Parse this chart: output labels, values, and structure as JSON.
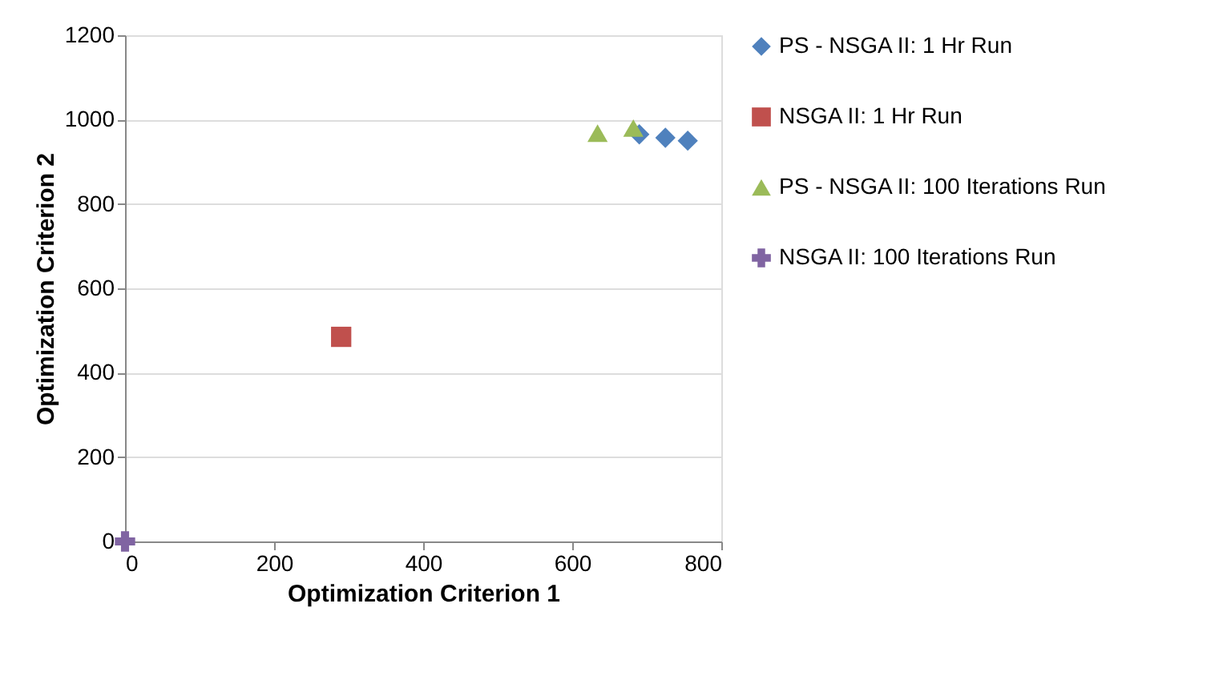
{
  "chart_data": {
    "type": "scatter",
    "xlabel": "Optimization Criterion 1",
    "ylabel": "Optimization Criterion 2",
    "xlim": [
      0,
      800
    ],
    "xticks": [
      0,
      200,
      400,
      600,
      800
    ],
    "ylim": [
      0,
      1200
    ],
    "yticks": [
      0,
      200,
      400,
      600,
      800,
      1000,
      1200
    ],
    "grid": "y",
    "legend": "right",
    "series": [
      {
        "name": "PS - NSGA II: 1 Hr Run",
        "color": "#4f81bd",
        "marker": "diamond",
        "x": [
          690,
          725,
          755
        ],
        "values": [
          965,
          957,
          950
        ]
      },
      {
        "name": "NSGA II: 1 Hr Run",
        "color": "#c0504d",
        "marker": "square",
        "x": [
          290
        ],
        "values": [
          485
        ]
      },
      {
        "name": "PS - NSGA II: 100 Iterations Run",
        "color": "#9bbb59",
        "marker": "triangle",
        "x": [
          634,
          682
        ],
        "values": [
          968,
          980
        ]
      },
      {
        "name": "NSGA II: 100 Iterations Run",
        "color": "#8064a2",
        "marker": "cross",
        "x": [
          0
        ],
        "values": [
          0
        ]
      }
    ]
  }
}
